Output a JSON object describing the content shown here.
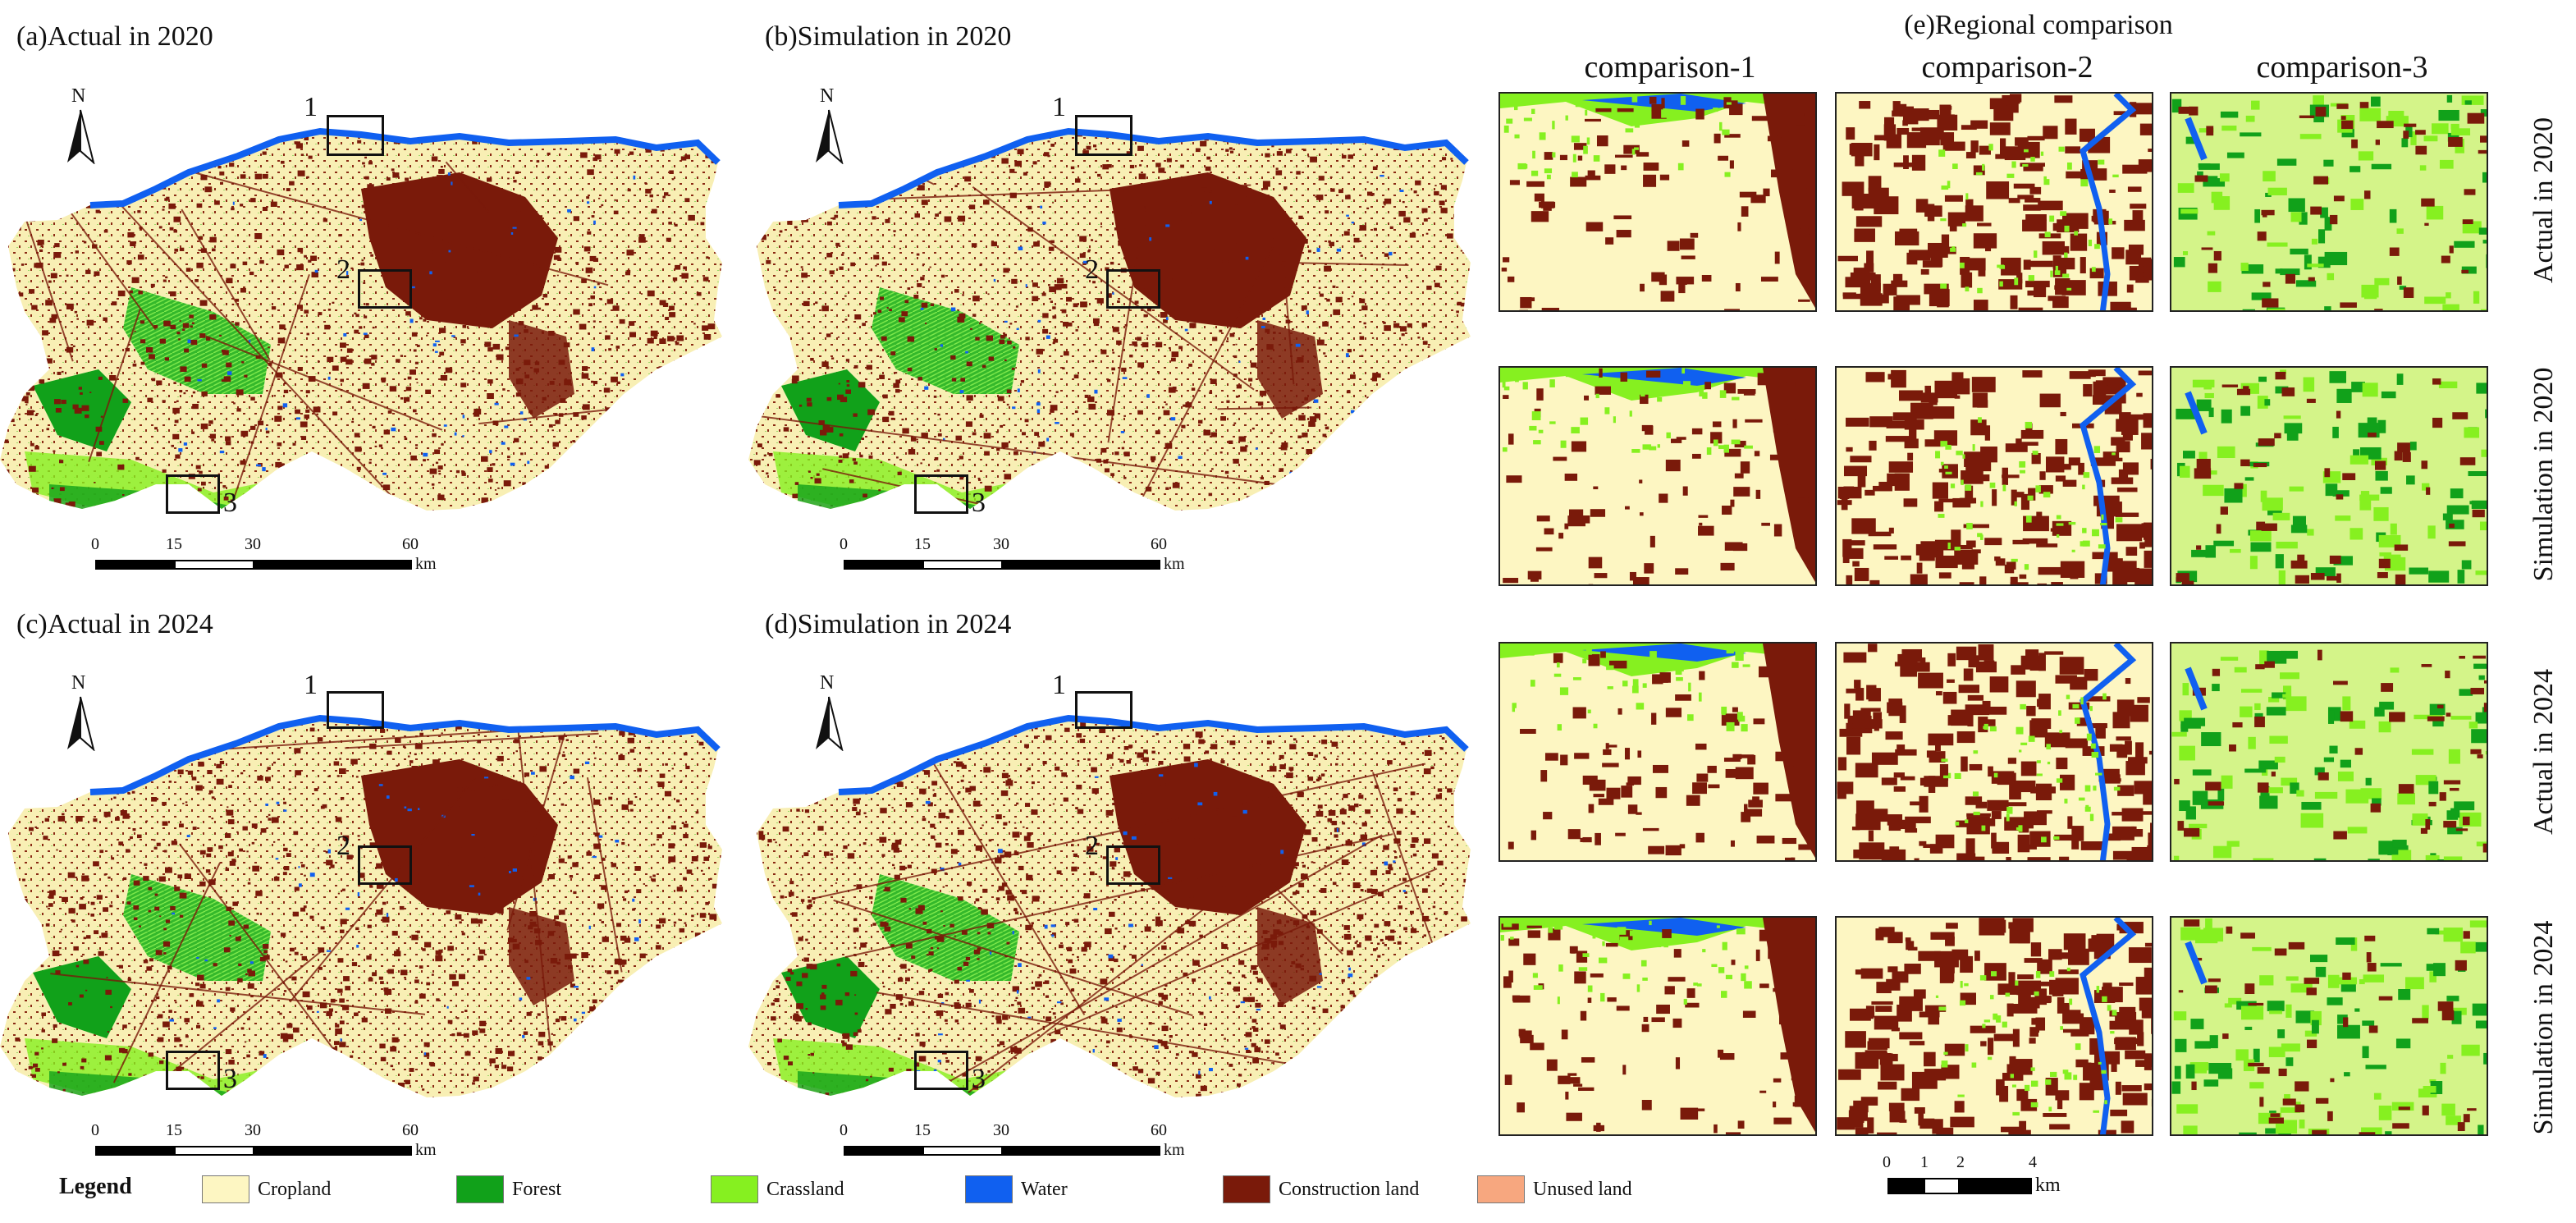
{
  "panels": [
    {
      "label": "(a)Actual in 2020"
    },
    {
      "label": "(b)Simulation in 2020"
    },
    {
      "label": "(c)Actual in 2024"
    },
    {
      "label": "(d)Simulation in 2024"
    }
  ],
  "north_label": "N",
  "zoom_labels": [
    "1",
    "2",
    "3"
  ],
  "map_scale": {
    "ticks": [
      "0",
      "15",
      "30",
      "60"
    ],
    "unit": "km"
  },
  "regional": {
    "title": "(e)Regional comparison",
    "columns": [
      "comparison-1",
      "comparison-2",
      "comparison-3"
    ],
    "rows": [
      "Actual in 2020",
      "Simulation in 2020",
      "Actual in 2024",
      "Simulation in 2024"
    ]
  },
  "detail_scale": {
    "ticks": [
      "0",
      "1",
      "2",
      "4"
    ],
    "unit": "km"
  },
  "legend": {
    "title": "Legend",
    "items": [
      {
        "label": "Cropland",
        "color": "#fdf6c2"
      },
      {
        "label": "Forest",
        "color": "#11a11a"
      },
      {
        "label": "Crassland",
        "color": "#86f020"
      },
      {
        "label": "Water",
        "color": "#1060f0"
      },
      {
        "label": "Construction land",
        "color": "#7a1a0a"
      },
      {
        "label": "Unused land",
        "color": "#f7a77f"
      }
    ]
  }
}
